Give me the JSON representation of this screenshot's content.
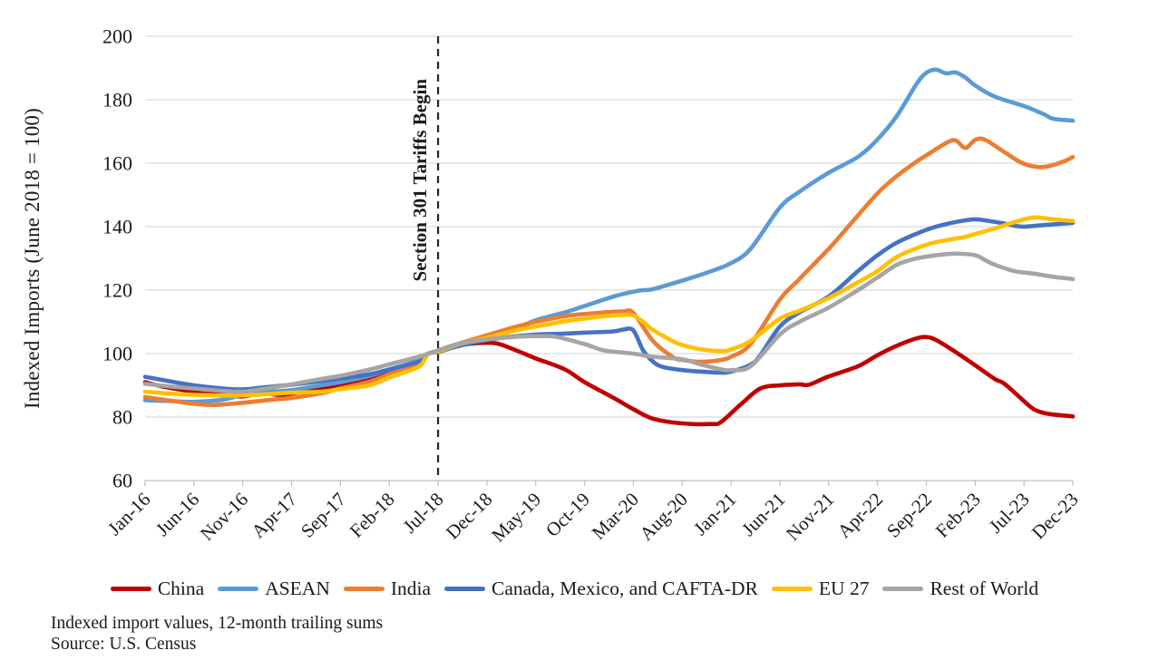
{
  "chart_data": {
    "type": "line",
    "title": "",
    "xlabel": "",
    "ylabel": "Indexed Imports (June 2018 = 100)",
    "ylim": [
      60,
      200
    ],
    "y_ticks": [
      60,
      80,
      100,
      120,
      140,
      160,
      180,
      200
    ],
    "x_tick_labels": [
      "Jan-16",
      "Jun-16",
      "Nov-16",
      "Apr-17",
      "Sep-17",
      "Feb-18",
      "Jul-18",
      "Dec-18",
      "May-19",
      "Oct-19",
      "Mar-20",
      "Aug-20",
      "Jan-21",
      "Jun-21",
      "Nov-21",
      "Apr-22",
      "Sep-22",
      "Feb-23",
      "Jul-23",
      "Dec-23"
    ],
    "grid": "horizontal",
    "legend_position": "bottom",
    "annotation": {
      "label": "Section 301 Tariffs Begin",
      "x_month": "Jul-18",
      "style": "vertical-dashed-line"
    },
    "colors": {
      "gridline": "#d9d9d9",
      "axis": "#bfbfbf",
      "annotation_line": "#262626",
      "text": "#1a1a1a"
    },
    "series": [
      {
        "name": "China",
        "color": "#C00000",
        "points": [
          [
            "Jan-16",
            91
          ],
          [
            "Mar-16",
            89.5
          ],
          [
            "Jun-16",
            88
          ],
          [
            "Sep-16",
            87
          ],
          [
            "Nov-16",
            86.5
          ],
          [
            "Jan-17",
            87.5
          ],
          [
            "Mar-17",
            87
          ],
          [
            "Jun-17",
            88.5
          ],
          [
            "Sep-17",
            90
          ],
          [
            "Nov-17",
            91.5
          ],
          [
            "Feb-18",
            94.5
          ],
          [
            "May-18",
            98
          ],
          [
            "Jun-18",
            100
          ],
          [
            "Jul-18",
            100.8
          ],
          [
            "Sep-18",
            102.5
          ],
          [
            "Nov-18",
            103.3
          ],
          [
            "Jan-19",
            103.2
          ],
          [
            "Mar-19",
            101
          ],
          [
            "May-19",
            98.5
          ],
          [
            "Aug-19",
            95
          ],
          [
            "Oct-19",
            91
          ],
          [
            "Jan-20",
            86
          ],
          [
            "Mar-20",
            82.5
          ],
          [
            "May-20",
            79.5
          ],
          [
            "Aug-20",
            78
          ],
          [
            "Nov-20",
            77.8
          ],
          [
            "Dec-20",
            78.5
          ],
          [
            "Feb-21",
            84
          ],
          [
            "Apr-21",
            89
          ],
          [
            "Jun-21",
            90
          ],
          [
            "Aug-21",
            90.3
          ],
          [
            "Sep-21",
            90.2
          ],
          [
            "Nov-21",
            92.8
          ],
          [
            "Feb-22",
            96
          ],
          [
            "Apr-22",
            99.5
          ],
          [
            "Jun-22",
            102.5
          ],
          [
            "Aug-22",
            104.8
          ],
          [
            "Sep-22",
            105.2
          ],
          [
            "Oct-22",
            104.3
          ],
          [
            "Dec-22",
            100.5
          ],
          [
            "Feb-23",
            96.3
          ],
          [
            "Apr-23",
            92
          ],
          [
            "May-23",
            90.5
          ],
          [
            "Jul-23",
            85
          ],
          [
            "Aug-23",
            82.5
          ],
          [
            "Sep-23",
            81.3
          ],
          [
            "Oct-23",
            80.8
          ],
          [
            "Dec-23",
            80.2
          ]
        ]
      },
      {
        "name": "ASEAN",
        "color": "#5B9BD5",
        "points": [
          [
            "Jan-16",
            85.3
          ],
          [
            "Apr-16",
            85
          ],
          [
            "Jun-16",
            84.8
          ],
          [
            "Sep-16",
            85.5
          ],
          [
            "Nov-16",
            87
          ],
          [
            "Feb-17",
            88
          ],
          [
            "Apr-17",
            88.5
          ],
          [
            "Jul-17",
            90
          ],
          [
            "Sep-17",
            91
          ],
          [
            "Dec-17",
            93
          ],
          [
            "Feb-18",
            95
          ],
          [
            "May-18",
            97.8
          ],
          [
            "Jun-18",
            100
          ],
          [
            "Jul-18",
            100.8
          ],
          [
            "Sep-18",
            102.5
          ],
          [
            "Dec-18",
            105.5
          ],
          [
            "Mar-19",
            108
          ],
          [
            "May-19",
            110.5
          ],
          [
            "Aug-19",
            113
          ],
          [
            "Oct-19",
            115
          ],
          [
            "Jan-20",
            118
          ],
          [
            "Mar-20",
            119.5
          ],
          [
            "Apr-20",
            120
          ],
          [
            "May-20",
            120.3
          ],
          [
            "Aug-20",
            123
          ],
          [
            "Nov-20",
            126
          ],
          [
            "Jan-21",
            128.5
          ],
          [
            "Mar-21",
            133
          ],
          [
            "Jun-21",
            146
          ],
          [
            "Aug-21",
            151
          ],
          [
            "Nov-21",
            157
          ],
          [
            "Feb-22",
            162
          ],
          [
            "Apr-22",
            167.5
          ],
          [
            "Jun-22",
            175
          ],
          [
            "Aug-22",
            185
          ],
          [
            "Sep-22",
            188.5
          ],
          [
            "Oct-22",
            189.5
          ],
          [
            "Nov-22",
            188.3
          ],
          [
            "Dec-22",
            188.6
          ],
          [
            "Jan-23",
            187
          ],
          [
            "Feb-23",
            184.5
          ],
          [
            "Apr-23",
            181
          ],
          [
            "Jul-23",
            178
          ],
          [
            "Sep-23",
            175.5
          ],
          [
            "Oct-23",
            174
          ],
          [
            "Dec-23",
            173.4
          ]
        ]
      },
      {
        "name": "India",
        "color": "#ED7D31",
        "points": [
          [
            "Jan-16",
            86.3
          ],
          [
            "Apr-16",
            85
          ],
          [
            "Jun-16",
            84.2
          ],
          [
            "Aug-16",
            83.8
          ],
          [
            "Nov-16",
            84.5
          ],
          [
            "Feb-17",
            85.5
          ],
          [
            "Apr-17",
            86
          ],
          [
            "Jul-17",
            87.5
          ],
          [
            "Sep-17",
            89
          ],
          [
            "Dec-17",
            91.2
          ],
          [
            "Feb-18",
            93.5
          ],
          [
            "May-18",
            97
          ],
          [
            "Jun-18",
            100
          ],
          [
            "Jul-18",
            100.7
          ],
          [
            "Sep-18",
            103
          ],
          [
            "Dec-18",
            105.8
          ],
          [
            "Mar-19",
            108.5
          ],
          [
            "May-19",
            110
          ],
          [
            "Aug-19",
            111.8
          ],
          [
            "Oct-19",
            112.5
          ],
          [
            "Dec-19",
            113
          ],
          [
            "Feb-20",
            113.3
          ],
          [
            "Mar-20",
            112.8
          ],
          [
            "May-20",
            104
          ],
          [
            "Jul-20",
            99
          ],
          [
            "Aug-20",
            98
          ],
          [
            "Oct-20",
            97.4
          ],
          [
            "Dec-20",
            98
          ],
          [
            "Jan-21",
            99
          ],
          [
            "Mar-21",
            103
          ],
          [
            "Jun-21",
            117
          ],
          [
            "Aug-21",
            123.5
          ],
          [
            "Nov-21",
            133
          ],
          [
            "Jan-22",
            140
          ],
          [
            "Apr-22",
            150.5
          ],
          [
            "Jun-22",
            156
          ],
          [
            "Aug-22",
            160.5
          ],
          [
            "Sep-22",
            162.5
          ],
          [
            "Nov-22",
            166.3
          ],
          [
            "Dec-22",
            167.2
          ],
          [
            "Jan-23",
            164.8
          ],
          [
            "Feb-23",
            167.3
          ],
          [
            "Mar-23",
            167.4
          ],
          [
            "May-23",
            163.5
          ],
          [
            "Jul-23",
            159.8
          ],
          [
            "Sep-23",
            158.8
          ],
          [
            "Nov-23",
            160.5
          ],
          [
            "Dec-23",
            162
          ]
        ]
      },
      {
        "name": "Canada, Mexico, and CAFTA-DR",
        "color": "#4472C4",
        "points": [
          [
            "Jan-16",
            92.7
          ],
          [
            "Apr-16",
            91
          ],
          [
            "Jun-16",
            90
          ],
          [
            "Sep-16",
            89
          ],
          [
            "Nov-16",
            88.7
          ],
          [
            "Jan-17",
            89.3
          ],
          [
            "Apr-17",
            90.2
          ],
          [
            "Jul-17",
            91.3
          ],
          [
            "Sep-17",
            92.2
          ],
          [
            "Dec-17",
            93.5
          ],
          [
            "Feb-18",
            95
          ],
          [
            "May-18",
            97.5
          ],
          [
            "Jun-18",
            100
          ],
          [
            "Jul-18",
            100.5
          ],
          [
            "Sep-18",
            102.3
          ],
          [
            "Dec-18",
            104.3
          ],
          [
            "Mar-19",
            105.5
          ],
          [
            "May-19",
            106
          ],
          [
            "Aug-19",
            106.3
          ],
          [
            "Oct-19",
            106.6
          ],
          [
            "Jan-20",
            107
          ],
          [
            "Feb-20",
            107.6
          ],
          [
            "Mar-20",
            107.3
          ],
          [
            "Apr-20",
            101
          ],
          [
            "May-20",
            97.5
          ],
          [
            "Jun-20",
            95.8
          ],
          [
            "Aug-20",
            94.8
          ],
          [
            "Oct-20",
            94.3
          ],
          [
            "Dec-20",
            94
          ],
          [
            "Jan-21",
            94.3
          ],
          [
            "Mar-21",
            96.5
          ],
          [
            "Apr-21",
            99.5
          ],
          [
            "Jun-21",
            108.5
          ],
          [
            "Aug-21",
            113
          ],
          [
            "Nov-21",
            118
          ],
          [
            "Feb-22",
            126
          ],
          [
            "Apr-22",
            131
          ],
          [
            "Jun-22",
            135
          ],
          [
            "Sep-22",
            139
          ],
          [
            "Nov-22",
            140.8
          ],
          [
            "Jan-23",
            142
          ],
          [
            "Feb-23",
            142.3
          ],
          [
            "Mar-23",
            142
          ],
          [
            "May-23",
            141
          ],
          [
            "Jun-23",
            140.3
          ],
          [
            "Jul-23",
            140
          ],
          [
            "Sep-23",
            140.5
          ],
          [
            "Dec-23",
            141.2
          ]
        ]
      },
      {
        "name": "EU 27",
        "color": "#FFC000",
        "points": [
          [
            "Jan-16",
            88
          ],
          [
            "Apr-16",
            87.3
          ],
          [
            "Jun-16",
            87
          ],
          [
            "Sep-16",
            86.8
          ],
          [
            "Nov-16",
            86.8
          ],
          [
            "Feb-17",
            87.3
          ],
          [
            "Apr-17",
            87.7
          ],
          [
            "Jul-17",
            88
          ],
          [
            "Sep-17",
            88.8
          ],
          [
            "Dec-17",
            90
          ],
          [
            "Feb-18",
            92.5
          ],
          [
            "May-18",
            95.8
          ],
          [
            "Jun-18",
            100
          ],
          [
            "Jul-18",
            100.6
          ],
          [
            "Sep-18",
            102.8
          ],
          [
            "Dec-18",
            105
          ],
          [
            "Mar-19",
            107.3
          ],
          [
            "May-19",
            108.5
          ],
          [
            "Aug-19",
            110.2
          ],
          [
            "Oct-19",
            111
          ],
          [
            "Dec-19",
            111.8
          ],
          [
            "Feb-20",
            112.2
          ],
          [
            "Mar-20",
            112
          ],
          [
            "Apr-20",
            110
          ],
          [
            "May-20",
            107.5
          ],
          [
            "Jul-20",
            104
          ],
          [
            "Aug-20",
            102.7
          ],
          [
            "Oct-20",
            101.3
          ],
          [
            "Dec-20",
            100.8
          ],
          [
            "Jan-21",
            101.3
          ],
          [
            "Mar-21",
            104
          ],
          [
            "Jun-21",
            111
          ],
          [
            "Aug-21",
            113.5
          ],
          [
            "Nov-21",
            117.5
          ],
          [
            "Feb-22",
            122.5
          ],
          [
            "Apr-22",
            126
          ],
          [
            "Jun-22",
            130.5
          ],
          [
            "Sep-22",
            134.3
          ],
          [
            "Nov-22",
            135.7
          ],
          [
            "Jan-23",
            136.8
          ],
          [
            "Feb-23",
            137.7
          ],
          [
            "Apr-23",
            139.4
          ],
          [
            "Jun-23",
            141.4
          ],
          [
            "Aug-23",
            142.9
          ],
          [
            "Oct-23",
            142.3
          ],
          [
            "Dec-23",
            141.8
          ]
        ]
      },
      {
        "name": "Rest of World",
        "color": "#A5A5A5",
        "points": [
          [
            "Jan-16",
            90.5
          ],
          [
            "Apr-16",
            89.5
          ],
          [
            "Jun-16",
            89
          ],
          [
            "Sep-16",
            88.2
          ],
          [
            "Nov-16",
            88
          ],
          [
            "Jan-17",
            88.8
          ],
          [
            "Apr-17",
            90.3
          ],
          [
            "Jul-17",
            92
          ],
          [
            "Sep-17",
            93
          ],
          [
            "Dec-17",
            95
          ],
          [
            "Feb-18",
            96.6
          ],
          [
            "May-18",
            99
          ],
          [
            "Jun-18",
            100
          ],
          [
            "Jul-18",
            101
          ],
          [
            "Sep-18",
            103
          ],
          [
            "Dec-18",
            104.5
          ],
          [
            "Mar-19",
            105.3
          ],
          [
            "May-19",
            105.5
          ],
          [
            "Jul-19",
            105.3
          ],
          [
            "Oct-19",
            103
          ],
          [
            "Dec-19",
            101
          ],
          [
            "Mar-20",
            100
          ],
          [
            "May-20",
            99
          ],
          [
            "Aug-20",
            98.2
          ],
          [
            "Oct-20",
            96.5
          ],
          [
            "Dec-20",
            95
          ],
          [
            "Jan-21",
            94.8
          ],
          [
            "Mar-21",
            96
          ],
          [
            "Jun-21",
            106
          ],
          [
            "Aug-21",
            110
          ],
          [
            "Nov-21",
            114.5
          ],
          [
            "Feb-22",
            120
          ],
          [
            "Apr-22",
            124
          ],
          [
            "Jun-22",
            128
          ],
          [
            "Aug-22",
            130
          ],
          [
            "Oct-22",
            131
          ],
          [
            "Dec-22",
            131.5
          ],
          [
            "Feb-23",
            131
          ],
          [
            "Mar-23",
            129.5
          ],
          [
            "Apr-23",
            128
          ],
          [
            "Jun-23",
            126
          ],
          [
            "Aug-23",
            125.2
          ],
          [
            "Oct-23",
            124.2
          ],
          [
            "Dec-23",
            123.5
          ]
        ]
      }
    ],
    "footnotes": [
      "Indexed import values, 12-month trailing sums",
      "Source: U.S. Census"
    ]
  }
}
